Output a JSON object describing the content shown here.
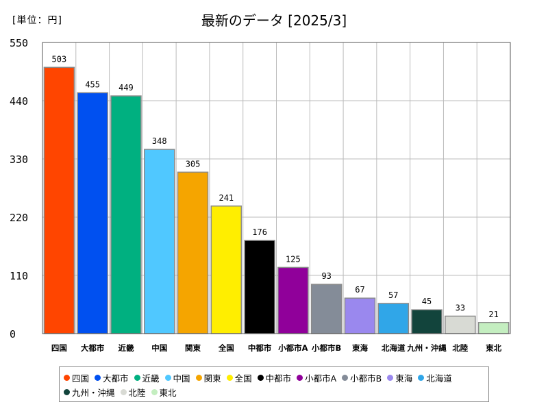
{
  "unit_label": "[単位：円]",
  "chart_data": {
    "type": "bar",
    "title": "最新のデータ [2025/3]",
    "xlabel": "",
    "ylabel": "",
    "ylim": [
      0,
      550
    ],
    "yticks": [
      0,
      110,
      220,
      330,
      440,
      550
    ],
    "grid": true,
    "legend_position": "bottom",
    "categories": [
      "四国",
      "大都市",
      "近畿",
      "中国",
      "関東",
      "全国",
      "中都市",
      "小都市A",
      "小都市B",
      "東海",
      "北海道",
      "九州・沖縄",
      "北陸",
      "東北"
    ],
    "values": [
      503,
      455,
      449,
      348,
      305,
      241,
      176,
      125,
      93,
      67,
      57,
      45,
      33,
      21
    ],
    "colors": [
      "#ff4500",
      "#0050f0",
      "#00b080",
      "#50c8ff",
      "#f5a500",
      "#ffee00",
      "#000000",
      "#90009a",
      "#848c98",
      "#9a88ee",
      "#30a6e8",
      "#12443c",
      "#d8dad4",
      "#c4eec0"
    ]
  }
}
